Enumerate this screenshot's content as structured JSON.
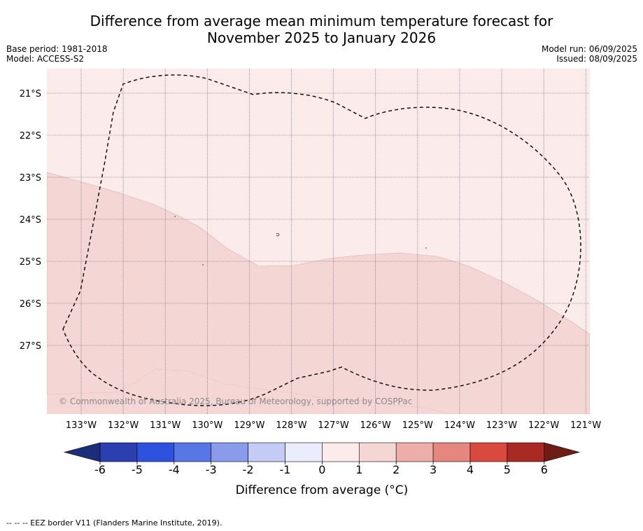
{
  "title": {
    "line1": "Difference from average mean minimum temperature forecast for",
    "line2": "November 2025 to January 2026"
  },
  "meta_left": [
    "Base period: 1981-2018",
    "Model: ACCESS-S2"
  ],
  "meta_right": [
    "Model run: 06/09/2025",
    "Issued: 08/09/2025"
  ],
  "map": {
    "lat_labels": [
      "21°S",
      "22°S",
      "23°S",
      "24°S",
      "25°S",
      "26°S",
      "27°S"
    ],
    "lon_labels": [
      "133°W",
      "132°W",
      "131°W",
      "130°W",
      "129°W",
      "128°W",
      "127°W",
      "126°W",
      "125°W",
      "124°W",
      "123°W",
      "122°W",
      "121°W"
    ],
    "watermark": "© Commonwealth of Australia 2025, Bureau of Meteorology, supported by COSPPac",
    "regions": [
      {
        "range": "0 to 1",
        "color": "#fbebea",
        "name": "northern-region"
      },
      {
        "range": "1 to 2",
        "color": "#f4d6d5",
        "name": "southern-region"
      }
    ],
    "eez_border_style": "dashed"
  },
  "colorbar": {
    "ticks": [
      "-6",
      "-5",
      "-4",
      "-3",
      "-2",
      "-1",
      "0",
      "1",
      "2",
      "3",
      "4",
      "5",
      "6"
    ],
    "colors": [
      "#2b3fb0",
      "#2f52de",
      "#5876e4",
      "#8a9bec",
      "#c4cbf4",
      "#eaedfb",
      "#fbebea",
      "#f4d6d5",
      "#edaea9",
      "#e6877f",
      "#d9493d",
      "#a82a22"
    ],
    "under_color": "#1c2e7a",
    "over_color": "#6e1c16",
    "label": "Difference from average (°C)"
  },
  "footnote": "-- -- -- EEZ border V11 (Flanders Marine Institute, 2019)."
}
